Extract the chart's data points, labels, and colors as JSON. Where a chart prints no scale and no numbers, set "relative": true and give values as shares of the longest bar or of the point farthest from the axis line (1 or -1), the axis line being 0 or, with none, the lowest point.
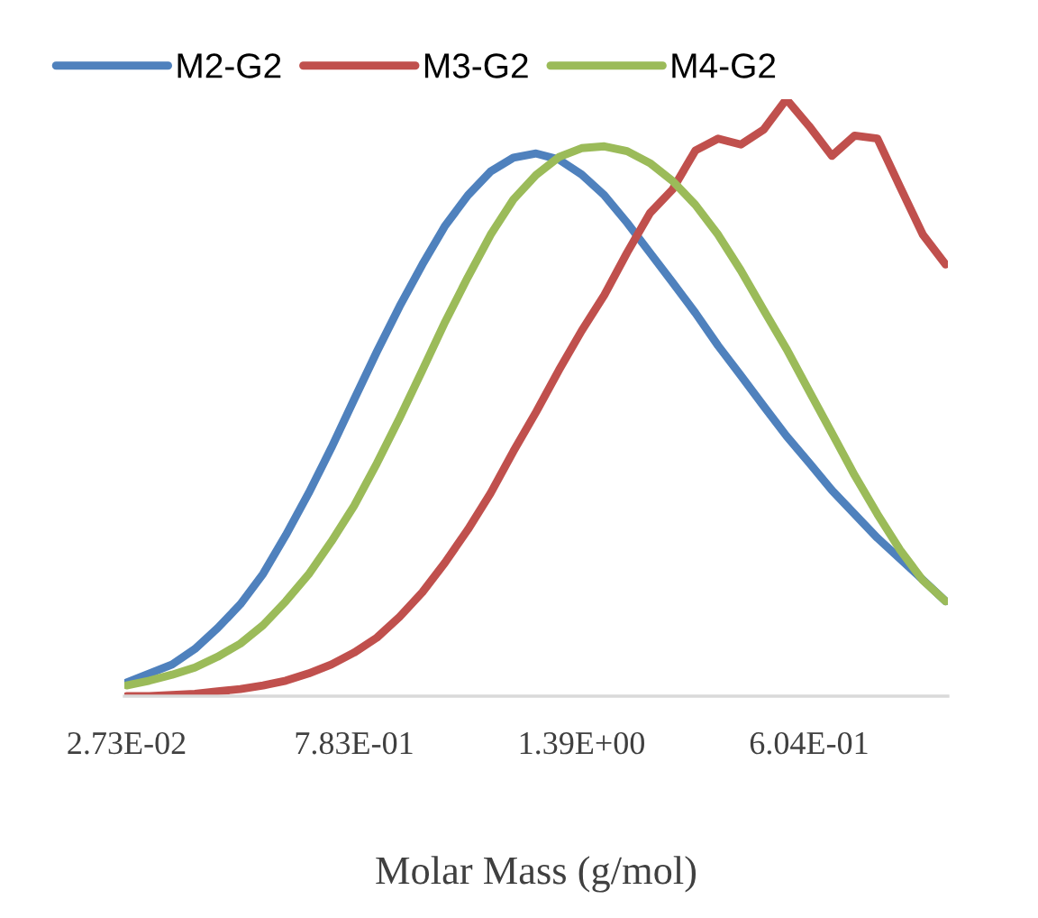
{
  "chart_data": {
    "type": "line",
    "relative": true,
    "xlabel": "Molar Mass (g/mol)",
    "legend": "top left",
    "grid": false,
    "marker": "none",
    "line_style": "solid",
    "categories": [
      "2.73E-02",
      null,
      null,
      null,
      null,
      null,
      null,
      null,
      null,
      null,
      "7.83E-01",
      null,
      null,
      null,
      null,
      null,
      null,
      null,
      null,
      null,
      "1.39E+00",
      null,
      null,
      null,
      null,
      null,
      null,
      null,
      null,
      null,
      "6.04E-01",
      null,
      null,
      null,
      null,
      null,
      null
    ],
    "series": [
      {
        "name": "M2-G2",
        "color": "#4f81bd",
        "values": [
          0.023,
          0.038,
          0.053,
          0.079,
          0.114,
          0.154,
          0.205,
          0.27,
          0.34,
          0.416,
          0.497,
          0.577,
          0.653,
          0.723,
          0.788,
          0.839,
          0.879,
          0.902,
          0.909,
          0.899,
          0.874,
          0.839,
          0.793,
          0.743,
          0.693,
          0.642,
          0.587,
          0.537,
          0.486,
          0.436,
          0.391,
          0.345,
          0.305,
          0.265,
          0.23,
          0.195,
          0.159
        ]
      },
      {
        "name": "M3-G2",
        "color": "#c0504d",
        "values": [
          0,
          0,
          0.002,
          0.004,
          0.008,
          0.012,
          0.018,
          0.026,
          0.038,
          0.053,
          0.073,
          0.098,
          0.133,
          0.174,
          0.224,
          0.279,
          0.34,
          0.41,
          0.476,
          0.546,
          0.612,
          0.672,
          0.743,
          0.809,
          0.849,
          0.914,
          0.934,
          0.924,
          0.949,
          1.0,
          0.955,
          0.905,
          0.939,
          0.934,
          0.853,
          0.773,
          0.723
        ]
      },
      {
        "name": "M4-G2",
        "color": "#9bbb59",
        "values": [
          0.018,
          0.026,
          0.036,
          0.048,
          0.066,
          0.088,
          0.119,
          0.159,
          0.204,
          0.259,
          0.319,
          0.39,
          0.466,
          0.546,
          0.627,
          0.702,
          0.773,
          0.832,
          0.873,
          0.903,
          0.918,
          0.921,
          0.913,
          0.893,
          0.863,
          0.823,
          0.773,
          0.713,
          0.647,
          0.582,
          0.511,
          0.441,
          0.37,
          0.305,
          0.245,
          0.194,
          0.159
        ]
      }
    ]
  }
}
